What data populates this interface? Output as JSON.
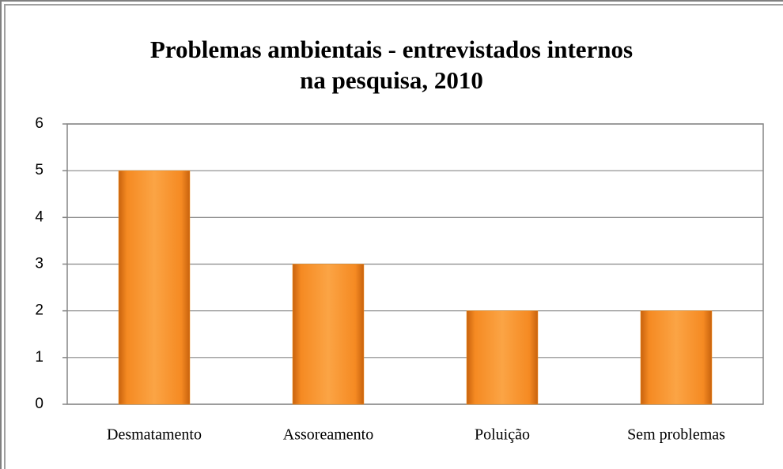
{
  "chart_data": {
    "type": "bar",
    "title": [
      "Problemas ambientais - entrevistados internos",
      "na pesquisa, 2010"
    ],
    "categories": [
      "Desmatamento",
      "Assoreamento",
      "Poluição",
      "Sem problemas"
    ],
    "values": [
      5,
      3,
      2,
      2
    ],
    "color": "#f7941d",
    "ylim": [
      0,
      6
    ],
    "yticks": [
      0,
      1,
      2,
      3,
      4,
      5,
      6
    ],
    "grid": true
  }
}
